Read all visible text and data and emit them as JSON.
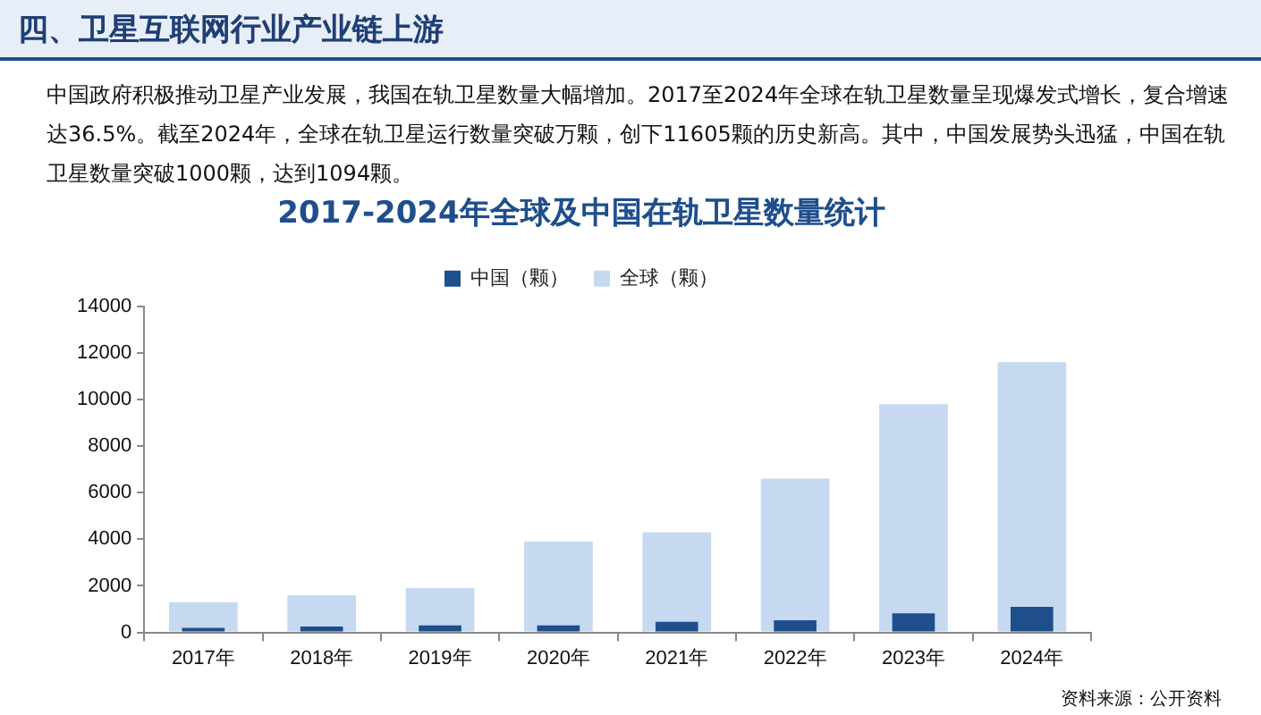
{
  "chart_data": {
    "type": "bar",
    "title": "2017-2024年全球及中国在轨卫星数量统计",
    "categories": [
      "2017年",
      "2018年",
      "2019年",
      "2020年",
      "2021年",
      "2022年",
      "2023年",
      "2024年"
    ],
    "series": [
      {
        "name": "全球（颗）",
        "color": "#c6d9f0",
        "values": [
          1300,
          1600,
          1900,
          3900,
          4300,
          6600,
          9800,
          11605
        ]
      },
      {
        "name": "中国（颗）",
        "color": "#1f4e8c",
        "values": [
          200,
          250,
          300,
          300,
          450,
          520,
          820,
          1094
        ]
      }
    ],
    "ylim": [
      0,
      14000
    ],
    "yticks": [
      0,
      2000,
      4000,
      6000,
      8000,
      10000,
      12000,
      14000
    ],
    "grid": false,
    "legend": "top",
    "annotations": [
      "四、卫星互联网行业产业链上游",
      "中国政府积极推动卫星产业发展，我国在轨卫星数量大幅增加。2017至2024年全球在轨卫星数量呈现爆发式增长，复合增速达36.5%。截至2024年，全球在轨卫星运行数量突破万颗，创下11605颗的历史新高。其中，中国发展势头迅猛，中国在轨卫星数量突破1000颗，达到1094颗。",
      "资料来源：公开资料"
    ]
  }
}
